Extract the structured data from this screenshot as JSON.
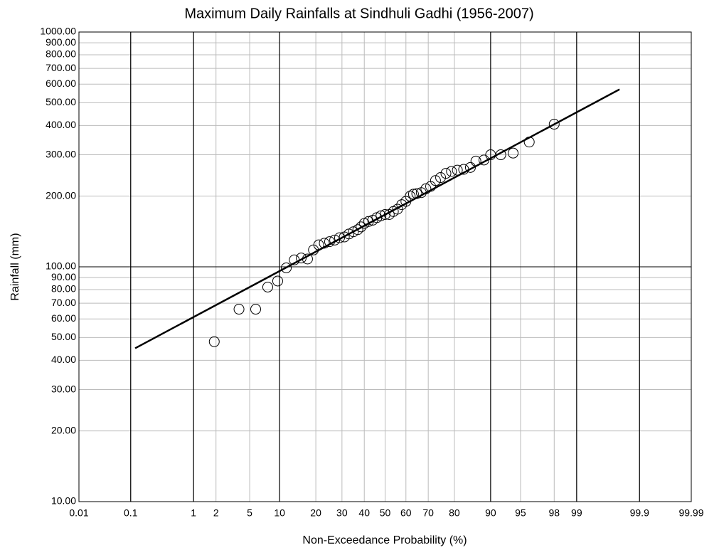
{
  "chart_data": {
    "type": "scatter",
    "title": "Maximum Daily Rainfalls at Sindhuli Gadhi (1956-2007)",
    "x_label": "Non-Exceedance Probability (%)",
    "y_label": "Rainfall (mm)",
    "xscale": "probability",
    "yscale": "log",
    "grid": true,
    "xlim": [
      0.01,
      99.99
    ],
    "ylim": [
      10,
      1000
    ],
    "xticks": [
      0.01,
      0.1,
      1,
      2,
      5,
      10,
      20,
      30,
      40,
      50,
      60,
      70,
      80,
      90,
      95,
      98,
      99,
      99.9,
      99.99
    ],
    "x_major": [
      0.1,
      1,
      10,
      90,
      99,
      99.9
    ],
    "yticks": [
      {
        "value": 10,
        "label": "10.00"
      },
      {
        "value": 20,
        "label": "20.00"
      },
      {
        "value": 30,
        "label": "30.00"
      },
      {
        "value": 40,
        "label": "40.00"
      },
      {
        "value": 50,
        "label": "50.00"
      },
      {
        "value": 60,
        "label": "60.00"
      },
      {
        "value": 70,
        "label": "70.00"
      },
      {
        "value": 80,
        "label": "80.00"
      },
      {
        "value": 90,
        "label": "90.00"
      },
      {
        "value": 100,
        "label": "100.00"
      },
      {
        "value": 200,
        "label": "200.00"
      },
      {
        "value": 300,
        "label": "300.00"
      },
      {
        "value": 400,
        "label": "400.00"
      },
      {
        "value": 500,
        "label": "500.00"
      },
      {
        "value": 600,
        "label": "600.00"
      },
      {
        "value": 700,
        "label": "700.00"
      },
      {
        "value": 800,
        "label": "800.00"
      },
      {
        "value": 900,
        "label": "900.00"
      },
      {
        "value": 1000,
        "label": "1000.00"
      }
    ],
    "y_major": [
      100
    ],
    "series": [
      {
        "color": "#000000",
        "x": [
          1.9,
          3.8,
          5.8,
          7.7,
          9.6,
          11.5,
          13.5,
          15.4,
          17.3,
          19.2,
          21,
          23,
          25,
          27,
          29,
          31,
          33,
          35,
          37,
          38.5,
          40,
          42,
          44,
          46,
          48,
          50,
          52,
          54,
          56,
          58,
          60,
          62,
          63.5,
          65,
          67,
          69,
          71,
          73,
          75,
          77,
          79,
          81,
          83,
          85,
          86.5,
          88.5,
          90,
          92,
          94,
          96,
          98
        ],
        "values": [
          48,
          66,
          66,
          82,
          87,
          99,
          107,
          109,
          108,
          118,
          124,
          126,
          128,
          130,
          133,
          134,
          138,
          141,
          144,
          148,
          153,
          156,
          158,
          162,
          165,
          167,
          167,
          172,
          176,
          184,
          190,
          200,
          204,
          205,
          207,
          215,
          220,
          233,
          240,
          250,
          255,
          258,
          260,
          265,
          282,
          285,
          300,
          300,
          305,
          340,
          405
        ]
      }
    ],
    "fit_line": {
      "color": "#000000",
      "x": [
        0.12,
        99.78
      ],
      "values": [
        45,
        570
      ]
    }
  }
}
